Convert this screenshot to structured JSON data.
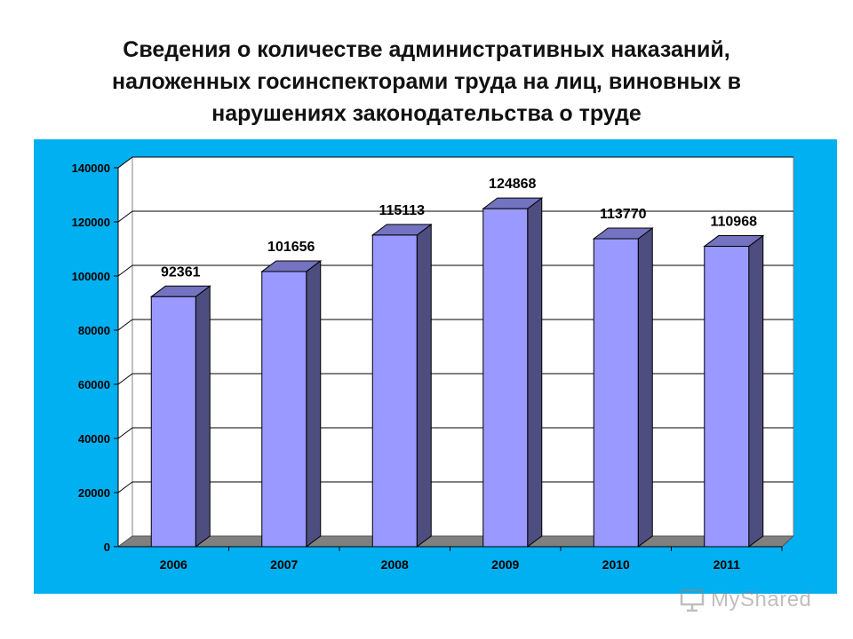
{
  "title": {
    "lines": [
      "Сведения о количестве административных наказаний,",
      "наложенных госинспекторами  труда на лиц, виновных в",
      "нарушениях законодательства  о труде"
    ]
  },
  "colors": {
    "panel_bg": "#00b0f0",
    "plot_bg": "#ffffff",
    "bar_front": "#9999ff",
    "bar_side": "#4d4d80",
    "bar_top": "#7373bf",
    "floor": "#808080"
  },
  "chart_data": {
    "type": "bar",
    "categories": [
      "2006",
      "2007",
      "2008",
      "2009",
      "2010",
      "2011"
    ],
    "values": [
      92361,
      101656,
      115113,
      124868,
      113770,
      110968
    ],
    "value_labels": [
      "92361",
      "101656",
      "115113",
      "124868",
      "113770",
      "110968"
    ],
    "ylim": [
      0,
      140000
    ],
    "yticks": [
      "0",
      "20000",
      "40000",
      "60000",
      "80000",
      "100000",
      "120000",
      "140000"
    ],
    "grid": true,
    "legend": "none",
    "style": "3d-column"
  },
  "watermark": {
    "text": "MyShared",
    "icon": "presentation-board-icon"
  }
}
